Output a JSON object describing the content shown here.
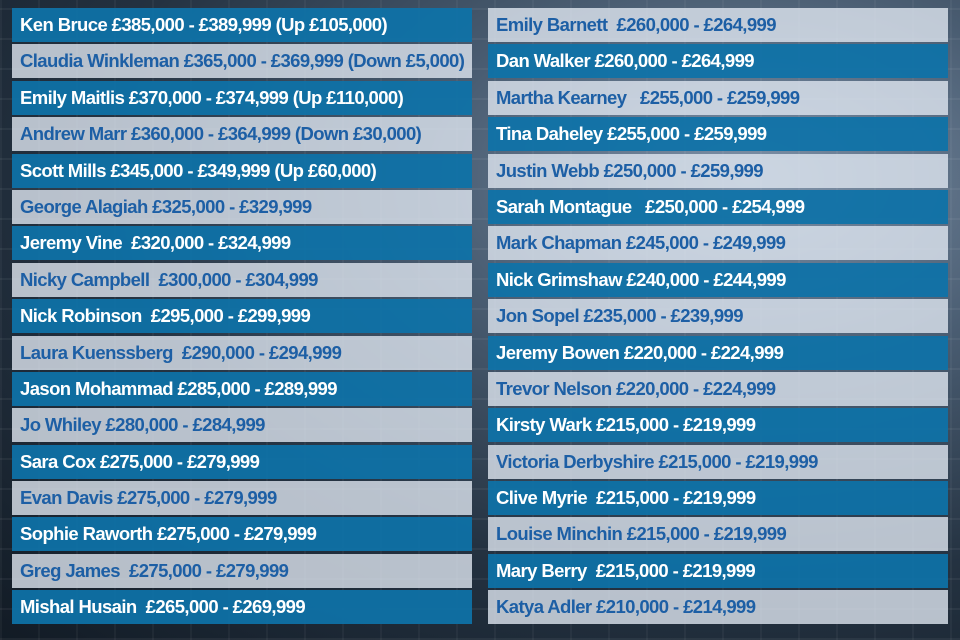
{
  "colors": {
    "band_dark": "#0e72a8",
    "band_light": "#dee6f0",
    "text_dark_band": "#ffffff",
    "text_light_band": "#1d5fa5"
  },
  "left_column": [
    "Ken Bruce £385,000 - £389,999 (Up £105,000)",
    "Claudia Winkleman £365,000 - £369,999 (Down £5,000)",
    "Emily Maitlis £370,000 - £374,999 (Up £110,000)",
    "Andrew Marr £360,000 - £364,999 (Down £30,000)",
    "Scott Mills £345,000 - £349,999 (Up £60,000)",
    "George Alagiah £325,000 - £329,999",
    "Jeremy Vine  £320,000 - £324,999",
    "Nicky Campbell  £300,000 - £304,999",
    "Nick Robinson  £295,000 - £299,999",
    "Laura Kuenssberg  £290,000 - £294,999",
    "Jason Mohammad £285,000 - £289,999",
    "Jo Whiley £280,000 - £284,999",
    "Sara Cox £275,000 - £279,999",
    "Evan Davis £275,000 - £279,999",
    "Sophie Raworth £275,000 - £279,999",
    "Greg James  £275,000 - £279,999",
    "Mishal Husain  £265,000 - £269,999"
  ],
  "right_column": [
    "Emily Barnett  £260,000 - £264,999",
    "Dan Walker £260,000 - £264,999",
    "Martha Kearney   £255,000 - £259,999",
    "Tina Daheley £255,000 - £259,999",
    "Justin Webb £250,000 - £259,999",
    "Sarah Montague   £250,000 - £254,999",
    "Mark Chapman £245,000 - £249,999",
    "Nick Grimshaw £240,000 - £244,999",
    "Jon Sopel £235,000 - £239,999",
    "Jeremy Bowen £220,000 - £224,999",
    "Trevor Nelson £220,000 - £224,999",
    "Kirsty Wark £215,000 - £219,999",
    "Victoria Derbyshire £215,000 - £219,999",
    "Clive Myrie  £215,000 - £219,999",
    "Louise Minchin £215,000 - £219,999",
    "Mary Berry  £215,000 - £219,999",
    "Katya Adler £210,000 - £214,999"
  ]
}
